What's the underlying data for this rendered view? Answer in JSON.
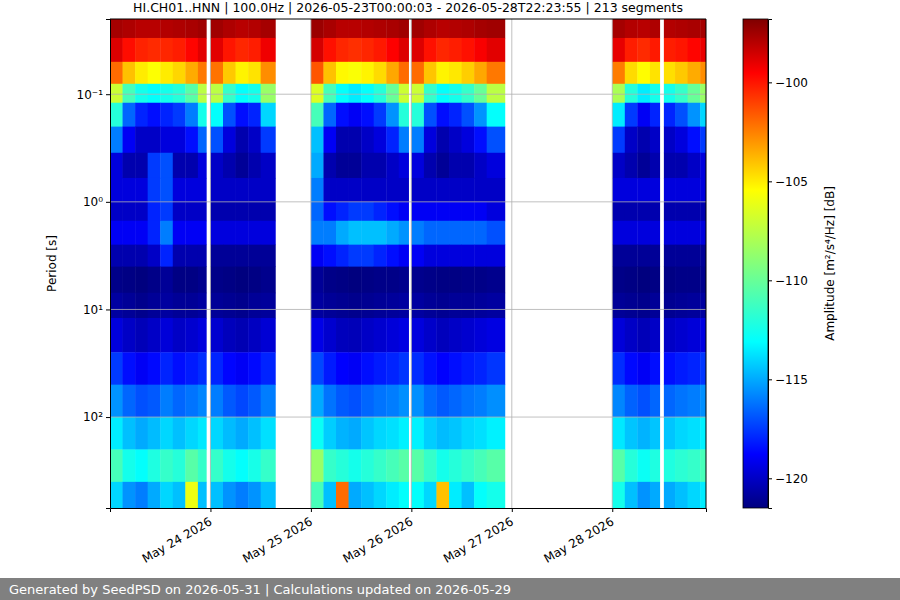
{
  "chart_data": {
    "type": "heatmap",
    "title": "HI.CH01..HNN | 100.0Hz | 2026-05-23T00:00:03 - 2026-05-28T22:23:55 | 213 segments",
    "y_label": "Period [s]",
    "log": "y",
    "grid": true,
    "xlim": [
      "2026-05-23T00:00:03",
      "2026-05-28T22:23:55"
    ],
    "xticks": [
      {
        "value": "2026-05-24",
        "label": "May 24 2026"
      },
      {
        "value": "2026-05-25",
        "label": "May 25 2026"
      },
      {
        "value": "2026-05-26",
        "label": "May 26 2026"
      },
      {
        "value": "2026-05-27",
        "label": "May 27 2026"
      },
      {
        "value": "2026-05-28",
        "label": "May 28 2026"
      }
    ],
    "ylim": [
      0.02,
      700
    ],
    "yticks": [
      {
        "value": 0.1,
        "label": "10⁻¹"
      },
      {
        "value": 1,
        "label": "10⁰"
      },
      {
        "value": 10,
        "label": "10¹"
      },
      {
        "value": 100,
        "label": "10²"
      }
    ],
    "x_edges": [
      "2026-05-23T00:00:03",
      "2026-05-23T03:00",
      "2026-05-23T06:00",
      "2026-05-23T09:00",
      "2026-05-23T12:00",
      "2026-05-23T15:00",
      "2026-05-23T18:00",
      "2026-05-23T21:00",
      "2026-05-23T23:00",
      "2026-05-24T00:00",
      "2026-05-24T03:00",
      "2026-05-24T06:00",
      "2026-05-24T09:00",
      "2026-05-24T12:00",
      "2026-05-24T15:30",
      "2026-05-25T00:00",
      "2026-05-25T03:00",
      "2026-05-25T06:00",
      "2026-05-25T09:00",
      "2026-05-25T12:00",
      "2026-05-25T15:00",
      "2026-05-25T18:00",
      "2026-05-25T21:00",
      "2026-05-25T23:20",
      "2026-05-26T00:00",
      "2026-05-26T03:00",
      "2026-05-26T06:00",
      "2026-05-26T09:00",
      "2026-05-26T12:00",
      "2026-05-26T15:00",
      "2026-05-26T18:00",
      "2026-05-26T22:20",
      "2026-05-28T00:00",
      "2026-05-28T03:00",
      "2026-05-28T06:00",
      "2026-05-28T09:00",
      "2026-05-28T11:20",
      "2026-05-28T12:20",
      "2026-05-28T15:00",
      "2026-05-28T18:00",
      "2026-05-28T21:00",
      "2026-05-28T22:23:55"
    ],
    "y_edges": [
      0.02,
      0.03,
      0.05,
      0.08,
      0.12,
      0.2,
      0.35,
      0.6,
      1,
      1.5,
      2.5,
      4,
      7,
      12,
      25,
      50,
      100,
      200,
      400,
      700
    ],
    "values": [
      [
        -97.6,
        -97.8,
        -98,
        -98,
        -97.9,
        -97.8,
        -97.7,
        -97.5,
        null,
        -97.5,
        -97.8,
        -98,
        -97.9,
        -97.6,
        null,
        -97.4,
        -97.7,
        -98,
        -98,
        -97.9,
        -97.8,
        -97.7,
        -97.5,
        null,
        -97.5,
        -97.8,
        -98,
        -97.9,
        -97.8,
        -97.6,
        -97.5,
        null,
        -97.6,
        -97.9,
        -98,
        -97.8,
        null,
        -97.9,
        -97.8,
        -97.7,
        -97.6
      ],
      [
        -98.8,
        -99.8,
        -100.3,
        -100.5,
        -100.4,
        -100.2,
        -99.6,
        -98.9,
        null,
        -98.9,
        -100,
        -100.4,
        -100.2,
        -99.2,
        null,
        -98.6,
        -99.9,
        -100.4,
        -100.6,
        -100.4,
        -100.1,
        -99.5,
        -98.8,
        null,
        -98.8,
        -99.9,
        -100.4,
        -100.2,
        -99.9,
        -99.4,
        -98.9,
        null,
        -99,
        -100.2,
        -100.5,
        -100.1,
        null,
        -100.2,
        -100,
        -99.6,
        -99.1
      ],
      [
        -102,
        -104,
        -105,
        -105.5,
        -105,
        -104.5,
        -103.5,
        -102.3,
        null,
        -102.2,
        -104.2,
        -105.2,
        -104.8,
        -102.8,
        null,
        -101.5,
        -104,
        -105.3,
        -105.6,
        -105.2,
        -104.6,
        -103.4,
        -102,
        null,
        -102,
        -104.1,
        -105.2,
        -104.9,
        -104.3,
        -103.4,
        -102.3,
        null,
        -102.4,
        -104.6,
        -105.4,
        -104.8,
        null,
        -104.7,
        -104.2,
        -103.5,
        -102.8
      ],
      [
        -107,
        -111,
        -112.5,
        -113,
        -112.5,
        -112,
        -110.5,
        -107.5,
        null,
        -107.5,
        -111.5,
        -113,
        -112.5,
        -108.5,
        null,
        -106.5,
        -111,
        -113,
        -113.5,
        -113,
        -112,
        -110,
        -107,
        null,
        -107,
        -111.5,
        -113,
        -112.5,
        -111.5,
        -110,
        -107.5,
        null,
        -108,
        -112,
        -113.5,
        -112.5,
        null,
        -112.5,
        -111.5,
        -110,
        -108.5
      ],
      [
        -112,
        -116.5,
        -118,
        -118.5,
        -118,
        -117.5,
        -116,
        -112.5,
        null,
        -113,
        -117,
        -118.5,
        -118,
        -114,
        null,
        -111,
        -116.5,
        -118.5,
        -119,
        -118.5,
        -117.5,
        -115.5,
        -112,
        null,
        -112,
        -117,
        -118.5,
        -118,
        -117,
        -115.5,
        -113,
        null,
        -113.5,
        -117.5,
        -119,
        -118,
        null,
        -118,
        -117,
        -115.5,
        -114
      ],
      [
        -116,
        -119,
        -120,
        -120,
        -119.5,
        -119.5,
        -118.5,
        -116.5,
        null,
        -117,
        -119.5,
        -120.5,
        -120,
        -117.5,
        null,
        -114.5,
        -119,
        -120.5,
        -120.5,
        -120,
        -119.5,
        -118,
        -116,
        null,
        -116,
        -119.5,
        -120.5,
        -120,
        -119.5,
        -118.5,
        -117,
        null,
        -117.5,
        -120,
        -120.5,
        -120,
        null,
        -120,
        -119.5,
        -118.5,
        -117.5
      ],
      [
        -119.5,
        -120.5,
        -120.5,
        -117.5,
        -117,
        -120.5,
        -120.5,
        -119.5,
        null,
        -120,
        -120.5,
        -121,
        -120.5,
        -120,
        null,
        -115,
        -120.5,
        -121,
        -121,
        -120.5,
        -120.5,
        -120,
        -119.5,
        null,
        -119.5,
        -120.5,
        -121,
        -120.5,
        -120.5,
        -120,
        -119.5,
        null,
        -120,
        -120.5,
        -121,
        -120.5,
        null,
        -120.5,
        -120.5,
        -120,
        -119.5
      ],
      [
        -119.5,
        -119.5,
        -119.5,
        -117.5,
        -117,
        -119.5,
        -119.5,
        -119.5,
        null,
        -120,
        -120,
        -120,
        -120,
        -120,
        null,
        -116,
        -120,
        -120,
        -120,
        -120,
        -120,
        -120,
        -120,
        null,
        -120,
        -120,
        -120,
        -120,
        -120,
        -120,
        -120,
        null,
        -119.5,
        -119.5,
        -119.5,
        -119.5,
        null,
        -119.5,
        -119.5,
        -119.5,
        -119.5
      ],
      [
        -120,
        -120,
        -120,
        -118,
        -117.5,
        -120,
        -120,
        -120,
        null,
        -120.5,
        -120.5,
        -120.5,
        -120.5,
        -120.5,
        null,
        -116.5,
        -118.5,
        -118,
        -117.5,
        -117.5,
        -118,
        -118.5,
        -119,
        null,
        -119,
        -119,
        -119,
        -119,
        -119,
        -119,
        -119.5,
        null,
        -120.5,
        -120.5,
        -120.5,
        -120.5,
        null,
        -120.5,
        -120.5,
        -120.5,
        -120.5
      ],
      [
        -119,
        -119,
        -119,
        -118,
        -116,
        -119,
        -119,
        -119,
        null,
        -119.5,
        -119.5,
        -119.5,
        -119.5,
        -119.5,
        null,
        -116,
        -116,
        -115,
        -114.5,
        -114.5,
        -114.5,
        -115,
        -115.5,
        null,
        -116,
        -116.5,
        -116.5,
        -116.5,
        -116.5,
        -116.5,
        -117,
        null,
        -119.5,
        -119.5,
        -119.5,
        -119.5,
        null,
        -119.5,
        -119.5,
        -119.5,
        -119.5
      ],
      [
        -120.5,
        -120.5,
        -120.5,
        -120,
        -118,
        -120.5,
        -120.5,
        -120.5,
        null,
        -121,
        -121,
        -121,
        -121,
        -121,
        null,
        -119,
        -118.5,
        -118,
        -117.5,
        -117.5,
        -118,
        -118.5,
        -119,
        null,
        -119,
        -119.5,
        -119.5,
        -119.5,
        -119.5,
        -119.5,
        -119.5,
        null,
        -121,
        -121,
        -121,
        -121,
        null,
        -121,
        -121,
        -121,
        -121
      ],
      [
        -121.3,
        -121.4,
        -121.5,
        -121.3,
        -121,
        -121.4,
        -121.4,
        -121.2,
        null,
        -121.3,
        -121.4,
        -121.5,
        -121.4,
        -121.2,
        null,
        -121,
        -121.3,
        -121.4,
        -121.5,
        -121.4,
        -121.3,
        -121.3,
        -121.2,
        null,
        -121.2,
        -121.3,
        -121.4,
        -121.4,
        -121.3,
        -121.3,
        -121.2,
        null,
        -121.3,
        -121.4,
        -121.5,
        -121.4,
        null,
        -121.4,
        -121.3,
        -121.3,
        -121.2
      ],
      [
        -120.8,
        -121,
        -121.2,
        -121,
        -120.8,
        -121,
        -121,
        -120.8,
        null,
        -121,
        -121.1,
        -121.2,
        -121,
        -120.9,
        null,
        -120.8,
        -121,
        -121.1,
        -121.2,
        -121.1,
        -121,
        -120.9,
        -120.8,
        null,
        -120.8,
        -121,
        -121.1,
        -121,
        -121,
        -120.9,
        -120.8,
        null,
        -121,
        -121.1,
        -121.2,
        -121,
        null,
        -121.1,
        -121,
        -120.9,
        -120.8
      ],
      [
        -119.5,
        -120,
        -120.3,
        -120,
        -119.6,
        -120,
        -119.8,
        -119.5,
        null,
        -119.8,
        -120.2,
        -120.4,
        -120.1,
        -119.7,
        null,
        -119.3,
        -119.8,
        -120.2,
        -120.3,
        -120,
        -119.8,
        -119.6,
        -119.4,
        null,
        -119.5,
        -119.9,
        -120.2,
        -120,
        -119.8,
        -119.6,
        -119.4,
        null,
        -119.6,
        -120,
        -120.3,
        -120,
        null,
        -120,
        -119.8,
        -119.6,
        -119.4
      ],
      [
        -117.5,
        -118.5,
        -119,
        -118.6,
        -118,
        -118.5,
        -118.2,
        -117.8,
        null,
        -118,
        -118.7,
        -119,
        -118.6,
        -118,
        null,
        -117.2,
        -118.2,
        -118.8,
        -119,
        -118.5,
        -118.2,
        -118,
        -117.6,
        null,
        -117.8,
        -118.4,
        -118.8,
        -118.5,
        -118.2,
        -118,
        -117.6,
        null,
        -117.8,
        -118.6,
        -119,
        -118.5,
        null,
        -118.5,
        -118.2,
        -118,
        -117.6
      ],
      [
        -115.5,
        -116.5,
        -117,
        -116.8,
        -116,
        -116.5,
        -116.2,
        -115.8,
        null,
        -116,
        -116.8,
        -117.2,
        -116.8,
        -116,
        null,
        -115,
        -116.2,
        -116.8,
        -117,
        -116.5,
        -116.2,
        -116,
        -115.6,
        null,
        -115.6,
        -116.4,
        -116.8,
        -116.5,
        -116.2,
        -116,
        -115.6,
        null,
        -115.8,
        -116.6,
        -117,
        -116.5,
        null,
        -116.5,
        -116.2,
        -116,
        -115.6
      ],
      [
        -113.5,
        -114.5,
        -115,
        -114.6,
        -114,
        -114.5,
        -114,
        -113.6,
        null,
        -114,
        -114.6,
        -115,
        -114.5,
        -113.8,
        null,
        -112.8,
        -114.2,
        -114.8,
        -115,
        -114.4,
        -114,
        -113.8,
        -113.4,
        null,
        -113.4,
        -114.2,
        -114.6,
        -114.4,
        -114,
        -113.8,
        -113.4,
        null,
        -113.6,
        -114.4,
        -114.8,
        -114.4,
        null,
        -114.4,
        -114,
        -113.8,
        -113.4
      ],
      [
        -111,
        -112.5,
        -113,
        -112.2,
        -111.5,
        -112,
        -110.5,
        -111.5,
        null,
        -111.5,
        -112.5,
        -113,
        -112.4,
        -111.5,
        null,
        -108.5,
        -111.5,
        -112,
        -112.5,
        -112,
        -111.5,
        -111,
        -110.5,
        null,
        -110.5,
        -111.5,
        -112.5,
        -112,
        -111.5,
        -111,
        -110.5,
        null,
        -110.5,
        -112,
        -112.8,
        -112.2,
        null,
        -112.2,
        -111.8,
        -111.5,
        -111
      ],
      [
        -114,
        -115.5,
        -116,
        -115,
        -114,
        -114.5,
        -106,
        -114.5,
        null,
        -114.5,
        -115.5,
        -116,
        -115.5,
        -114.5,
        null,
        -111,
        -114.5,
        -102,
        -115,
        -114.5,
        -114,
        -113.5,
        -113,
        null,
        -113,
        -114,
        -104,
        -113.5,
        -114.5,
        -113,
        -112.5,
        null,
        -112.5,
        -114.5,
        -115.5,
        -115,
        null,
        -115,
        -114.5,
        -114,
        -113.5
      ]
    ],
    "colorbar": {
      "label": "Amplitude [m²/s⁴/Hz] [dB]",
      "lim": [
        -121.5,
        -96.8
      ],
      "ticks": [
        {
          "value": -120,
          "label": "−120"
        },
        {
          "value": -115,
          "label": "−115"
        },
        {
          "value": -110,
          "label": "−110"
        },
        {
          "value": -105,
          "label": "−105"
        },
        {
          "value": -100,
          "label": "−100"
        }
      ]
    }
  },
  "footer": "Generated by SeedPSD on 2026-05-31 | Calculations updated on 2026-05-29"
}
